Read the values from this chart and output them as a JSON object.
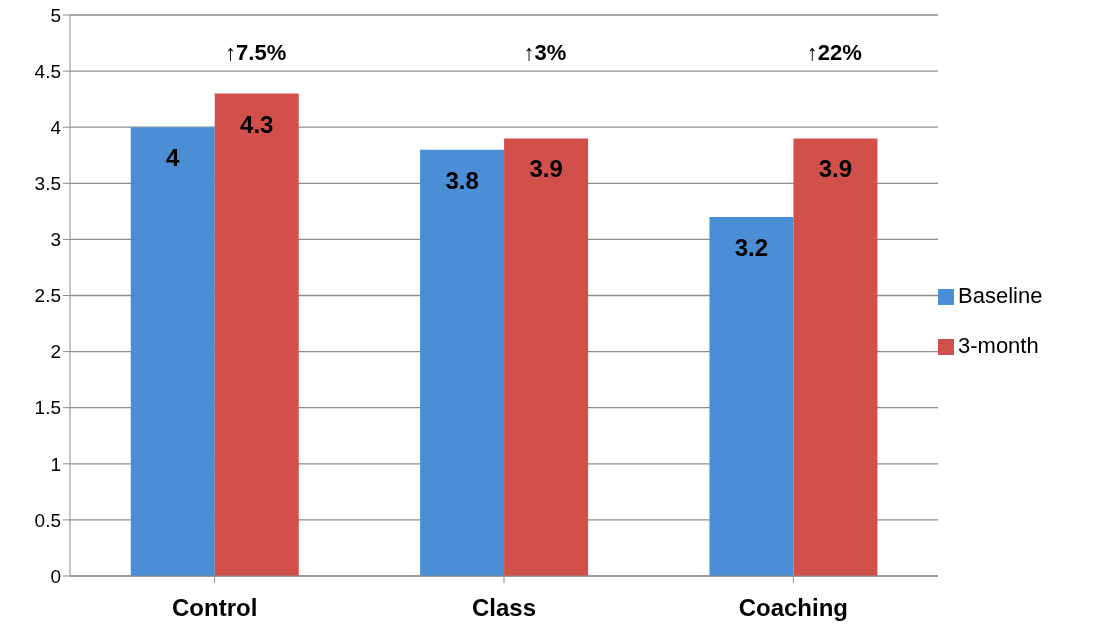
{
  "chart_data": {
    "type": "bar",
    "categories": [
      "Control",
      "Class",
      "Coaching"
    ],
    "series": [
      {
        "name": "Baseline",
        "color": "#4a8ed6",
        "values": [
          4,
          3.8,
          3.2
        ]
      },
      {
        "name": "3-month",
        "color": "#d2504a",
        "values": [
          4.3,
          3.9,
          3.9
        ]
      }
    ],
    "ylim": [
      0,
      5
    ],
    "yticks": [
      0,
      0.5,
      1,
      1.5,
      2,
      2.5,
      3,
      3.5,
      4,
      4.5,
      5
    ],
    "grid": "y",
    "legend": "right",
    "data_labels": true,
    "annotations": [
      "↑7.5%",
      "↑3%",
      "↑22%"
    ]
  }
}
